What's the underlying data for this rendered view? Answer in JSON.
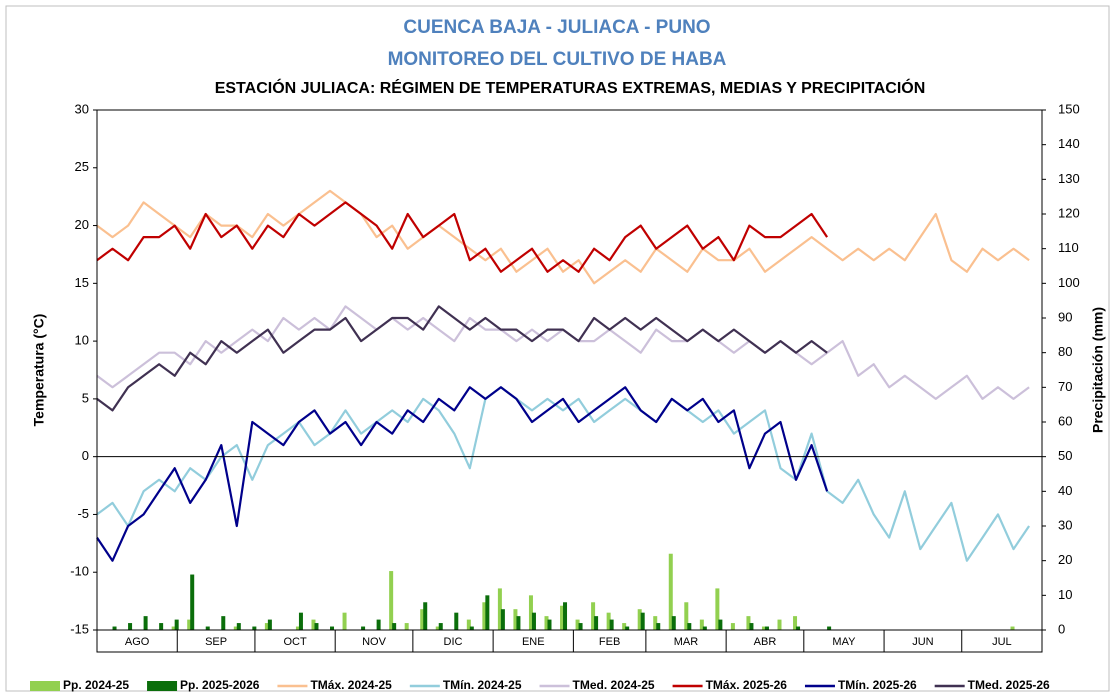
{
  "chart_data": {
    "type": "line",
    "title": "CUENCA BAJA - JULIACA - PUNO",
    "subtitle": "MONITOREO DEL CULTIVO DE HABA",
    "caption": "ESTACIÓN JULIACA: RÉGIMEN DE TEMPERATURAS EXTREMAS, MEDIAS Y PRECIPITACIÓN",
    "ylabel": "Temperatura (°C)",
    "y2label": "Precipitación (mm)",
    "categories": [
      "AGO",
      "SEP",
      "OCT",
      "NOV",
      "DIC",
      "ENE",
      "FEB",
      "MAR",
      "ABR",
      "MAY",
      "JUN",
      "JUL"
    ],
    "xlim": [
      0,
      365
    ],
    "xticks": [
      0,
      31,
      61,
      92,
      122,
      153,
      184,
      212,
      243,
      273,
      304,
      334,
      365
    ],
    "ylim": [
      -15,
      30
    ],
    "yticks": [
      -15,
      -10,
      -5,
      0,
      5,
      10,
      15,
      20,
      25,
      30
    ],
    "y2lim": [
      0,
      150
    ],
    "y2ticks": [
      0,
      10,
      20,
      30,
      40,
      50,
      60,
      70,
      80,
      90,
      100,
      110,
      120,
      130,
      140,
      150
    ],
    "x": [
      0,
      6,
      12,
      18,
      24,
      30,
      36,
      42,
      48,
      54,
      60,
      66,
      72,
      78,
      84,
      90,
      96,
      102,
      108,
      114,
      120,
      126,
      132,
      138,
      144,
      150,
      156,
      162,
      168,
      174,
      180,
      186,
      192,
      198,
      204,
      210,
      216,
      222,
      228,
      234,
      240,
      246,
      252,
      258,
      264,
      270,
      276,
      282,
      288,
      294,
      300,
      306,
      312,
      318,
      324,
      330,
      336,
      342,
      348,
      354,
      360
    ],
    "series": [
      {
        "name": "Pp. 2024-25",
        "type": "bar",
        "axis": "y2",
        "color": "#92d050",
        "values": [
          0,
          0,
          0,
          0,
          0,
          1,
          3,
          0,
          0,
          1,
          0,
          2,
          0,
          1,
          3,
          0,
          5,
          0,
          0,
          17,
          2,
          6,
          1,
          0,
          3,
          8,
          12,
          6,
          10,
          4,
          7,
          3,
          8,
          5,
          2,
          6,
          4,
          22,
          8,
          3,
          12,
          2,
          4,
          1,
          3,
          4,
          0,
          0,
          0,
          0,
          0,
          0,
          0,
          0,
          0,
          0,
          0,
          0,
          0,
          1,
          0
        ]
      },
      {
        "name": "Pp. 2025-2026",
        "type": "bar",
        "axis": "y2",
        "color": "#0b6e0b",
        "values": [
          0,
          1,
          2,
          4,
          2,
          3,
          16,
          1,
          4,
          2,
          1,
          3,
          0,
          5,
          2,
          1,
          0,
          1,
          3,
          2,
          0,
          8,
          2,
          5,
          1,
          10,
          6,
          4,
          5,
          3,
          8,
          2,
          4,
          3,
          1,
          5,
          2,
          4,
          2,
          1,
          3,
          0,
          2,
          1,
          0,
          1,
          0,
          1,
          null,
          null,
          null,
          null,
          null,
          null,
          null,
          null,
          null,
          null,
          null,
          null,
          null
        ]
      },
      {
        "name": "TMáx. 2024-25",
        "type": "line",
        "color": "#fac090",
        "values": [
          20,
          19,
          20,
          22,
          21,
          20,
          19,
          21,
          20,
          20,
          19,
          21,
          20,
          21,
          22,
          23,
          22,
          21,
          19,
          20,
          18,
          19,
          20,
          19,
          18,
          17,
          18,
          16,
          17,
          18,
          16,
          17,
          15,
          16,
          17,
          16,
          18,
          17,
          16,
          18,
          17,
          17,
          18,
          16,
          17,
          18,
          19,
          18,
          17,
          18,
          17,
          18,
          17,
          19,
          21,
          17,
          16,
          18,
          17,
          18,
          17
        ]
      },
      {
        "name": "TMín. 2024-25",
        "type": "line",
        "color": "#92cddc",
        "values": [
          -5,
          -4,
          -6,
          -3,
          -2,
          -3,
          -1,
          -2,
          0,
          1,
          -2,
          1,
          2,
          3,
          1,
          2,
          4,
          2,
          3,
          4,
          3,
          5,
          4,
          2,
          -1,
          5,
          6,
          5,
          4,
          5,
          4,
          5,
          3,
          4,
          5,
          4,
          3,
          5,
          4,
          3,
          4,
          2,
          3,
          4,
          -1,
          -2,
          2,
          -3,
          -4,
          -2,
          -5,
          -7,
          -3,
          -8,
          -6,
          -4,
          -9,
          -7,
          -5,
          -8,
          -6
        ]
      },
      {
        "name": "TMed. 2024-25",
        "type": "line",
        "color": "#ccc0da",
        "values": [
          7,
          6,
          7,
          8,
          9,
          9,
          8,
          10,
          9,
          10,
          11,
          10,
          12,
          11,
          12,
          11,
          13,
          12,
          11,
          12,
          11,
          12,
          11,
          10,
          12,
          11,
          11,
          10,
          11,
          10,
          11,
          10,
          10,
          11,
          10,
          9,
          11,
          10,
          10,
          11,
          10,
          9,
          10,
          9,
          10,
          9,
          8,
          9,
          10,
          7,
          8,
          6,
          7,
          6,
          5,
          6,
          7,
          5,
          6,
          5,
          6
        ]
      },
      {
        "name": "TMáx. 2025-26",
        "type": "line",
        "color": "#c00000",
        "values": [
          17,
          18,
          17,
          19,
          19,
          20,
          18,
          21,
          19,
          20,
          18,
          20,
          19,
          21,
          20,
          21,
          22,
          21,
          20,
          18,
          21,
          19,
          20,
          21,
          17,
          18,
          16,
          17,
          18,
          16,
          17,
          16,
          18,
          17,
          19,
          20,
          18,
          19,
          20,
          18,
          19,
          17,
          20,
          19,
          19,
          20,
          21,
          19,
          null,
          null,
          null,
          null,
          null,
          null,
          null,
          null,
          null,
          null,
          null,
          null,
          null
        ]
      },
      {
        "name": "TMín. 2025-26",
        "type": "line",
        "color": "#00008b",
        "values": [
          -7,
          -9,
          -6,
          -5,
          -3,
          -1,
          -4,
          -2,
          1,
          -6,
          3,
          2,
          1,
          3,
          4,
          2,
          3,
          1,
          3,
          2,
          4,
          3,
          5,
          4,
          6,
          5,
          6,
          5,
          3,
          4,
          5,
          3,
          4,
          5,
          6,
          4,
          3,
          5,
          4,
          5,
          3,
          4,
          -1,
          2,
          3,
          -2,
          1,
          -3,
          null,
          null,
          null,
          null,
          null,
          null,
          null,
          null,
          null,
          null,
          null,
          null,
          null
        ]
      },
      {
        "name": "TMed. 2025-26",
        "type": "line",
        "color": "#403152",
        "values": [
          5,
          4,
          6,
          7,
          8,
          7,
          9,
          8,
          10,
          9,
          10,
          11,
          9,
          10,
          11,
          11,
          12,
          10,
          11,
          12,
          12,
          11,
          13,
          12,
          11,
          12,
          11,
          11,
          10,
          11,
          11,
          10,
          12,
          11,
          12,
          11,
          12,
          11,
          10,
          11,
          10,
          11,
          10,
          9,
          10,
          9,
          10,
          9,
          null,
          null,
          null,
          null,
          null,
          null,
          null,
          null,
          null,
          null,
          null,
          null,
          null
        ]
      }
    ]
  }
}
